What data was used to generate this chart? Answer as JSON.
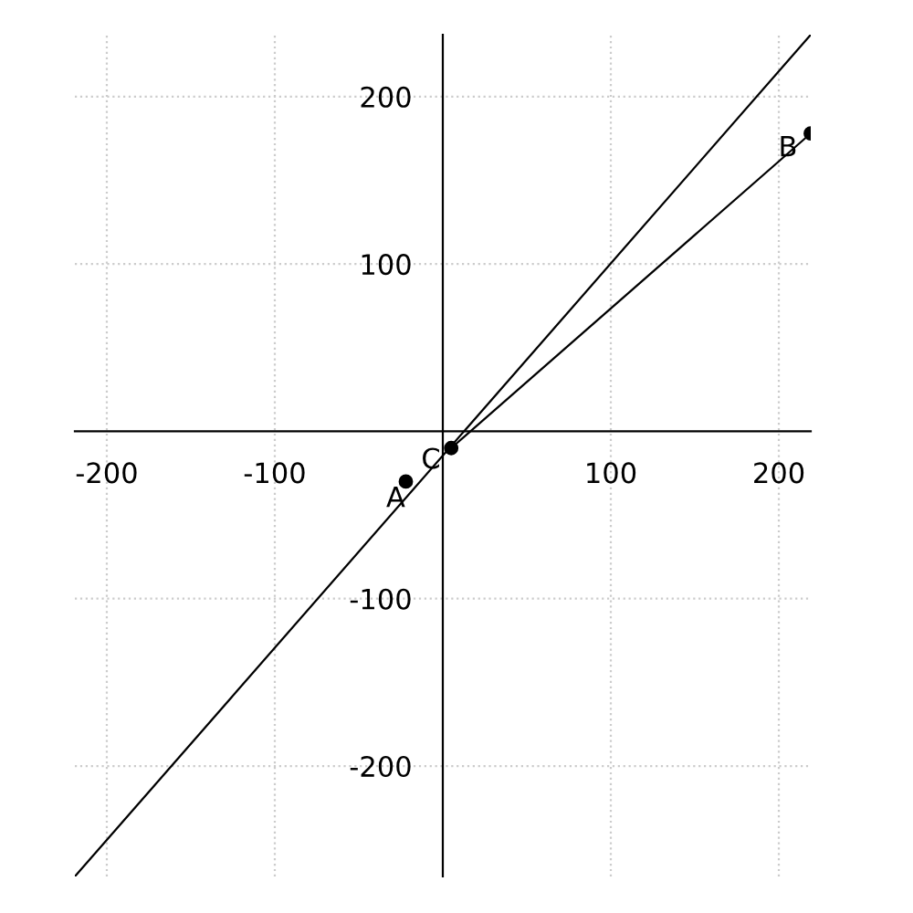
{
  "chart_data": {
    "type": "line",
    "xlim": [
      -219,
      219
    ],
    "ylim": [
      -266,
      237
    ],
    "xticks": [
      -200,
      -100,
      100,
      200
    ],
    "yticks": [
      -200,
      -100,
      100,
      200
    ],
    "grid": true,
    "line_style": "solid",
    "marker": "none",
    "series": [
      {
        "color": "#000000",
        "x": [
          -219,
          219
        ],
        "values": [
          -266,
          237
        ]
      },
      {
        "color": "#000000",
        "x": [
          5,
          219
        ],
        "values": [
          -10,
          178
        ]
      },
      {
        "type": "scatter",
        "marker": "circle",
        "color": "#000000",
        "x": [
          -22,
          5,
          219
        ],
        "values": [
          -30,
          -10,
          178
        ]
      }
    ],
    "annotations": [
      {
        "text": "A",
        "x": -22,
        "y": -30
      },
      {
        "text": "C",
        "x": 5,
        "y": -10
      },
      {
        "text": "B",
        "x": 219,
        "y": 178
      }
    ]
  }
}
